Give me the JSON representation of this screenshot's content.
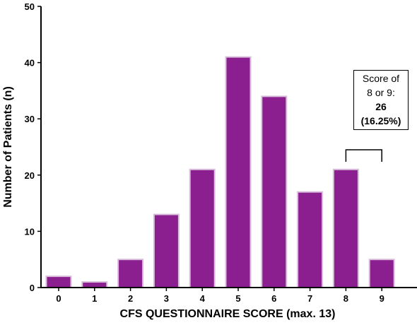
{
  "chart_data": {
    "type": "bar",
    "categories": [
      "0",
      "1",
      "2",
      "3",
      "4",
      "5",
      "6",
      "7",
      "8",
      "9"
    ],
    "values": [
      2,
      1,
      5,
      13,
      21,
      41,
      34,
      17,
      21,
      5
    ],
    "xlabel": "CFS QUESTIONNAIRE SCORE (max. 13)",
    "ylabel": "Number of Patients (n)",
    "ylim": [
      0,
      50
    ],
    "yticks": [
      0,
      10,
      20,
      30,
      40,
      50
    ],
    "grid": false,
    "bar_color": "#8B1F8F",
    "bar_edge_color": "#D9BEDC",
    "annotation": {
      "line1": "Score of",
      "line2": "8 or 9:",
      "count": "26",
      "percent": "(16.25%)",
      "bracket_categories": [
        "8",
        "9"
      ]
    }
  }
}
